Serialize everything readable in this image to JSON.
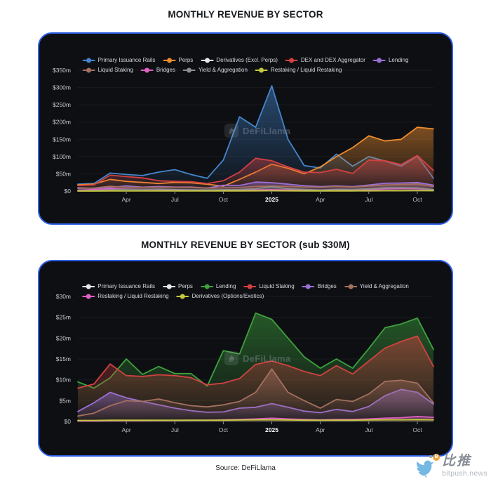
{
  "page": {
    "title_top": "MONTHLY REVENUE BY SECTOR",
    "title_bottom": "MONTHLY REVENUE BY SECTOR (sub $30M)",
    "source_note": "Source: DeFiLlama",
    "watermark_text": "DeFiLlama",
    "brand_name": "比推",
    "brand_domain": "bitpush.news"
  },
  "colors": {
    "page_background": "#ffffff",
    "card_background": "#0d0f13",
    "card_border": "#2e5fe8",
    "axis_label": "#c6cad1",
    "axis_label_bold": "#ffffff",
    "legend_text": "#d4d7dc",
    "disabled_series": "#e8e8e8",
    "bitpush_blue": "#74b9e4",
    "bitpush_coin_orange": "#f2a33c"
  },
  "chart_data": [
    {
      "type": "area",
      "title": "MONTHLY REVENUE BY SECTOR",
      "unit": "$m",
      "months": [
        "Jan 24",
        "Feb 24",
        "Mar 24",
        "Apr 24",
        "May 24",
        "Jun 24",
        "Jul 24",
        "Aug 24",
        "Sep 24",
        "Oct 24",
        "Nov 24",
        "Dec 24",
        "Jan 25",
        "Feb 25",
        "Mar 25",
        "Apr 25",
        "May 25",
        "Jun 25",
        "Jul 25",
        "Aug 25",
        "Sep 25",
        "Oct 25",
        "Nov 25"
      ],
      "ylim": [
        0,
        350
      ],
      "grid": true,
      "legend_position": "top",
      "y_ticks": [
        {
          "label": "$350m",
          "value": 350
        },
        {
          "label": "$300m",
          "value": 300
        },
        {
          "label": "$250m",
          "value": 250
        },
        {
          "label": "$200m",
          "value": 200
        },
        {
          "label": "$150m",
          "value": 150
        },
        {
          "label": "$100m",
          "value": 100
        },
        {
          "label": "$50m",
          "value": 50
        },
        {
          "label": "$0",
          "value": 0
        }
      ],
      "x_ticks": [
        {
          "label": "Apr",
          "month_index": 3,
          "bold": false
        },
        {
          "label": "Jul",
          "month_index": 6,
          "bold": false
        },
        {
          "label": "Oct",
          "month_index": 9,
          "bold": false
        },
        {
          "label": "2025",
          "month_index": 12,
          "bold": true
        },
        {
          "label": "Apr",
          "month_index": 15,
          "bold": false
        },
        {
          "label": "Jul",
          "month_index": 18,
          "bold": false
        },
        {
          "label": "Oct",
          "month_index": 21,
          "bold": false
        }
      ],
      "legend": [
        {
          "label": "Primary Issuance Rails",
          "color": "#4585cc",
          "active": true,
          "row": 1
        },
        {
          "label": "Perps",
          "color": "#ee8d2e",
          "active": true,
          "row": 1
        },
        {
          "label": "Derivatives (Excl. Perps)",
          "color": "#e8e8e8",
          "active": false,
          "row": 1
        },
        {
          "label": "DEX and DEX Aggregator",
          "color": "#d24141",
          "active": true,
          "row": 1
        },
        {
          "label": "Lending",
          "color": "#9a6fd4",
          "active": true,
          "row": 1
        },
        {
          "label": "Liquid Staking",
          "color": "#a5705e",
          "active": true,
          "row": 2
        },
        {
          "label": "Bridges",
          "color": "#df60c4",
          "active": true,
          "row": 2
        },
        {
          "label": "Yield & Aggregation",
          "color": "#8d8d8d",
          "active": true,
          "row": 2
        },
        {
          "label": "Restaking / Liquid Restaking",
          "color": "#c5c93c",
          "active": true,
          "row": 2
        }
      ],
      "series": [
        {
          "name": "Primary Issuance Rails",
          "color": "#4585cc",
          "values": [
            20,
            22,
            52,
            48,
            45,
            55,
            62,
            48,
            37,
            90,
            215,
            185,
            305,
            150,
            74,
            67,
            107,
            72,
            100,
            87,
            72,
            101,
            37
          ]
        },
        {
          "name": "Perps",
          "color": "#ee8d2e",
          "values": [
            18,
            20,
            34,
            28,
            25,
            22,
            25,
            24,
            20,
            14,
            34,
            55,
            78,
            66,
            50,
            70,
            100,
            126,
            160,
            145,
            150,
            185,
            180
          ]
        },
        {
          "name": "DEX and DEX Aggregator",
          "color": "#d24141",
          "values": [
            16,
            18,
            46,
            42,
            38,
            30,
            28,
            27,
            22,
            30,
            55,
            95,
            88,
            70,
            55,
            54,
            63,
            51,
            90,
            88,
            77,
            103,
            60
          ]
        },
        {
          "name": "Lending",
          "color": "#9a6fd4",
          "values": [
            9.5,
            8,
            10.5,
            15,
            11.3,
            13.2,
            11.5,
            11.5,
            8.5,
            17,
            16.2,
            26,
            24.5,
            20,
            15.5,
            12.8,
            15,
            12.8,
            17.5,
            22.5,
            23.4,
            24.8,
            17.3
          ]
        },
        {
          "name": "Liquid Staking",
          "color": "#a5705e",
          "values": [
            8,
            9,
            13.8,
            11,
            10.8,
            11.2,
            11,
            10.5,
            8.8,
            9.2,
            10.3,
            13.7,
            14.5,
            13.4,
            12,
            11,
            13.4,
            11.4,
            14.5,
            17.6,
            19.2,
            20.5,
            13.2
          ]
        },
        {
          "name": "Bridges",
          "color": "#df60c4",
          "values": [
            2.4,
            4.5,
            7,
            5.7,
            4.8,
            4,
            3.2,
            2.6,
            2.2,
            2.3,
            3.2,
            3.4,
            4.3,
            3.4,
            2.5,
            2.1,
            2.9,
            2.4,
            3.6,
            6.2,
            7.7,
            7,
            4.2
          ]
        },
        {
          "name": "Yield & Aggregation",
          "color": "#8d8d8d",
          "values": [
            1.3,
            2,
            3.8,
            5,
            4.8,
            5.4,
            4.5,
            3.8,
            3.5,
            4,
            4.8,
            7,
            12.6,
            7,
            5,
            3.2,
            5.3,
            4.8,
            6.6,
            9.6,
            9.9,
            9.2,
            4.5
          ]
        },
        {
          "name": "Restaking / Liquid Restaking",
          "color": "#c5c93c",
          "values": [
            0.1,
            0.1,
            0.15,
            0.2,
            0.2,
            0.25,
            0.25,
            0.3,
            0.3,
            0.4,
            0.5,
            0.6,
            0.8,
            0.6,
            0.5,
            0.4,
            0.5,
            0.5,
            0.6,
            0.8,
            0.9,
            1.2,
            1
          ]
        }
      ]
    },
    {
      "type": "area",
      "title": "MONTHLY REVENUE BY SECTOR (sub $30M)",
      "unit": "$m",
      "months": [
        "Jan 24",
        "Feb 24",
        "Mar 24",
        "Apr 24",
        "May 24",
        "Jun 24",
        "Jul 24",
        "Aug 24",
        "Sep 24",
        "Oct 24",
        "Nov 24",
        "Dec 24",
        "Jan 25",
        "Feb 25",
        "Mar 25",
        "Apr 25",
        "May 25",
        "Jun 25",
        "Jul 25",
        "Aug 25",
        "Sep 25",
        "Oct 25",
        "Nov 25"
      ],
      "ylim": [
        0,
        30
      ],
      "grid": true,
      "legend_position": "top",
      "y_ticks": [
        {
          "label": "$30m",
          "value": 30
        },
        {
          "label": "$25m",
          "value": 25
        },
        {
          "label": "$20m",
          "value": 20
        },
        {
          "label": "$15m",
          "value": 15
        },
        {
          "label": "$10m",
          "value": 10
        },
        {
          "label": "$5m",
          "value": 5
        },
        {
          "label": "$0",
          "value": 0
        }
      ],
      "x_ticks": [
        {
          "label": "Apr",
          "month_index": 3,
          "bold": false
        },
        {
          "label": "Jul",
          "month_index": 6,
          "bold": false
        },
        {
          "label": "Oct",
          "month_index": 9,
          "bold": false
        },
        {
          "label": "2025",
          "month_index": 12,
          "bold": true
        },
        {
          "label": "Apr",
          "month_index": 15,
          "bold": false
        },
        {
          "label": "Jul",
          "month_index": 18,
          "bold": false
        },
        {
          "label": "Oct",
          "month_index": 21,
          "bold": false
        }
      ],
      "legend": [
        {
          "label": "Primary Issuance Rails",
          "color": "#e8e8e8",
          "active": false,
          "row": 1
        },
        {
          "label": "Perps",
          "color": "#e8e8e8",
          "active": false,
          "row": 1
        },
        {
          "label": "Lending",
          "color": "#3ea23c",
          "active": true,
          "row": 1
        },
        {
          "label": "Liquid Staking",
          "color": "#d24141",
          "active": true,
          "row": 1
        },
        {
          "label": "Bridges",
          "color": "#9a6fd4",
          "active": true,
          "row": 1
        },
        {
          "label": "Yield & Aggregation",
          "color": "#a5705e",
          "active": true,
          "row": 1
        },
        {
          "label": "Restaking / Liquid Restaking",
          "color": "#df60c4",
          "active": true,
          "row": 2
        },
        {
          "label": "Derivatives (Options/Exotics)",
          "color": "#c5c93c",
          "active": true,
          "row": 2
        }
      ],
      "series": [
        {
          "name": "Lending",
          "color": "#3ea23c",
          "values": [
            9.5,
            8,
            10.5,
            15,
            11.3,
            13.2,
            11.5,
            11.5,
            8.5,
            17,
            16.2,
            26,
            24.5,
            20,
            15.5,
            12.8,
            15,
            12.8,
            17.5,
            22.5,
            23.4,
            24.8,
            17.3
          ]
        },
        {
          "name": "Liquid Staking",
          "color": "#d24141",
          "values": [
            8,
            9,
            13.8,
            11,
            10.8,
            11.2,
            11,
            10.5,
            8.8,
            9.2,
            10.3,
            13.7,
            14.5,
            13.4,
            12,
            11,
            13.4,
            11.4,
            14.5,
            17.6,
            19.2,
            20.5,
            13.2
          ]
        },
        {
          "name": "Bridges",
          "color": "#9a6fd4",
          "values": [
            2.4,
            4.5,
            7,
            5.7,
            4.8,
            4,
            3.2,
            2.6,
            2.2,
            2.3,
            3.2,
            3.4,
            4.3,
            3.4,
            2.5,
            2.1,
            2.9,
            2.4,
            3.6,
            6.2,
            7.7,
            7,
            4.2
          ]
        },
        {
          "name": "Yield & Aggregation",
          "color": "#a5705e",
          "values": [
            1.3,
            2,
            3.8,
            5,
            4.8,
            5.4,
            4.5,
            3.8,
            3.5,
            4,
            4.8,
            7,
            12.6,
            7,
            5,
            3.2,
            5.3,
            4.8,
            6.6,
            9.6,
            9.9,
            9.2,
            4.5
          ]
        },
        {
          "name": "Restaking / Liquid Restaking",
          "color": "#df60c4",
          "values": [
            0.1,
            0.1,
            0.15,
            0.2,
            0.2,
            0.25,
            0.25,
            0.3,
            0.3,
            0.4,
            0.5,
            0.6,
            0.8,
            0.6,
            0.5,
            0.4,
            0.5,
            0.5,
            0.6,
            0.8,
            0.9,
            1.2,
            1
          ]
        },
        {
          "name": "Derivatives (Options/Exotics)",
          "color": "#c5c93c",
          "values": [
            0.25,
            0.25,
            0.3,
            0.3,
            0.3,
            0.3,
            0.3,
            0.3,
            0.3,
            0.3,
            0.35,
            0.4,
            0.4,
            0.35,
            0.3,
            0.3,
            0.3,
            0.3,
            0.35,
            0.4,
            0.4,
            0.45,
            0.4
          ]
        }
      ]
    }
  ]
}
